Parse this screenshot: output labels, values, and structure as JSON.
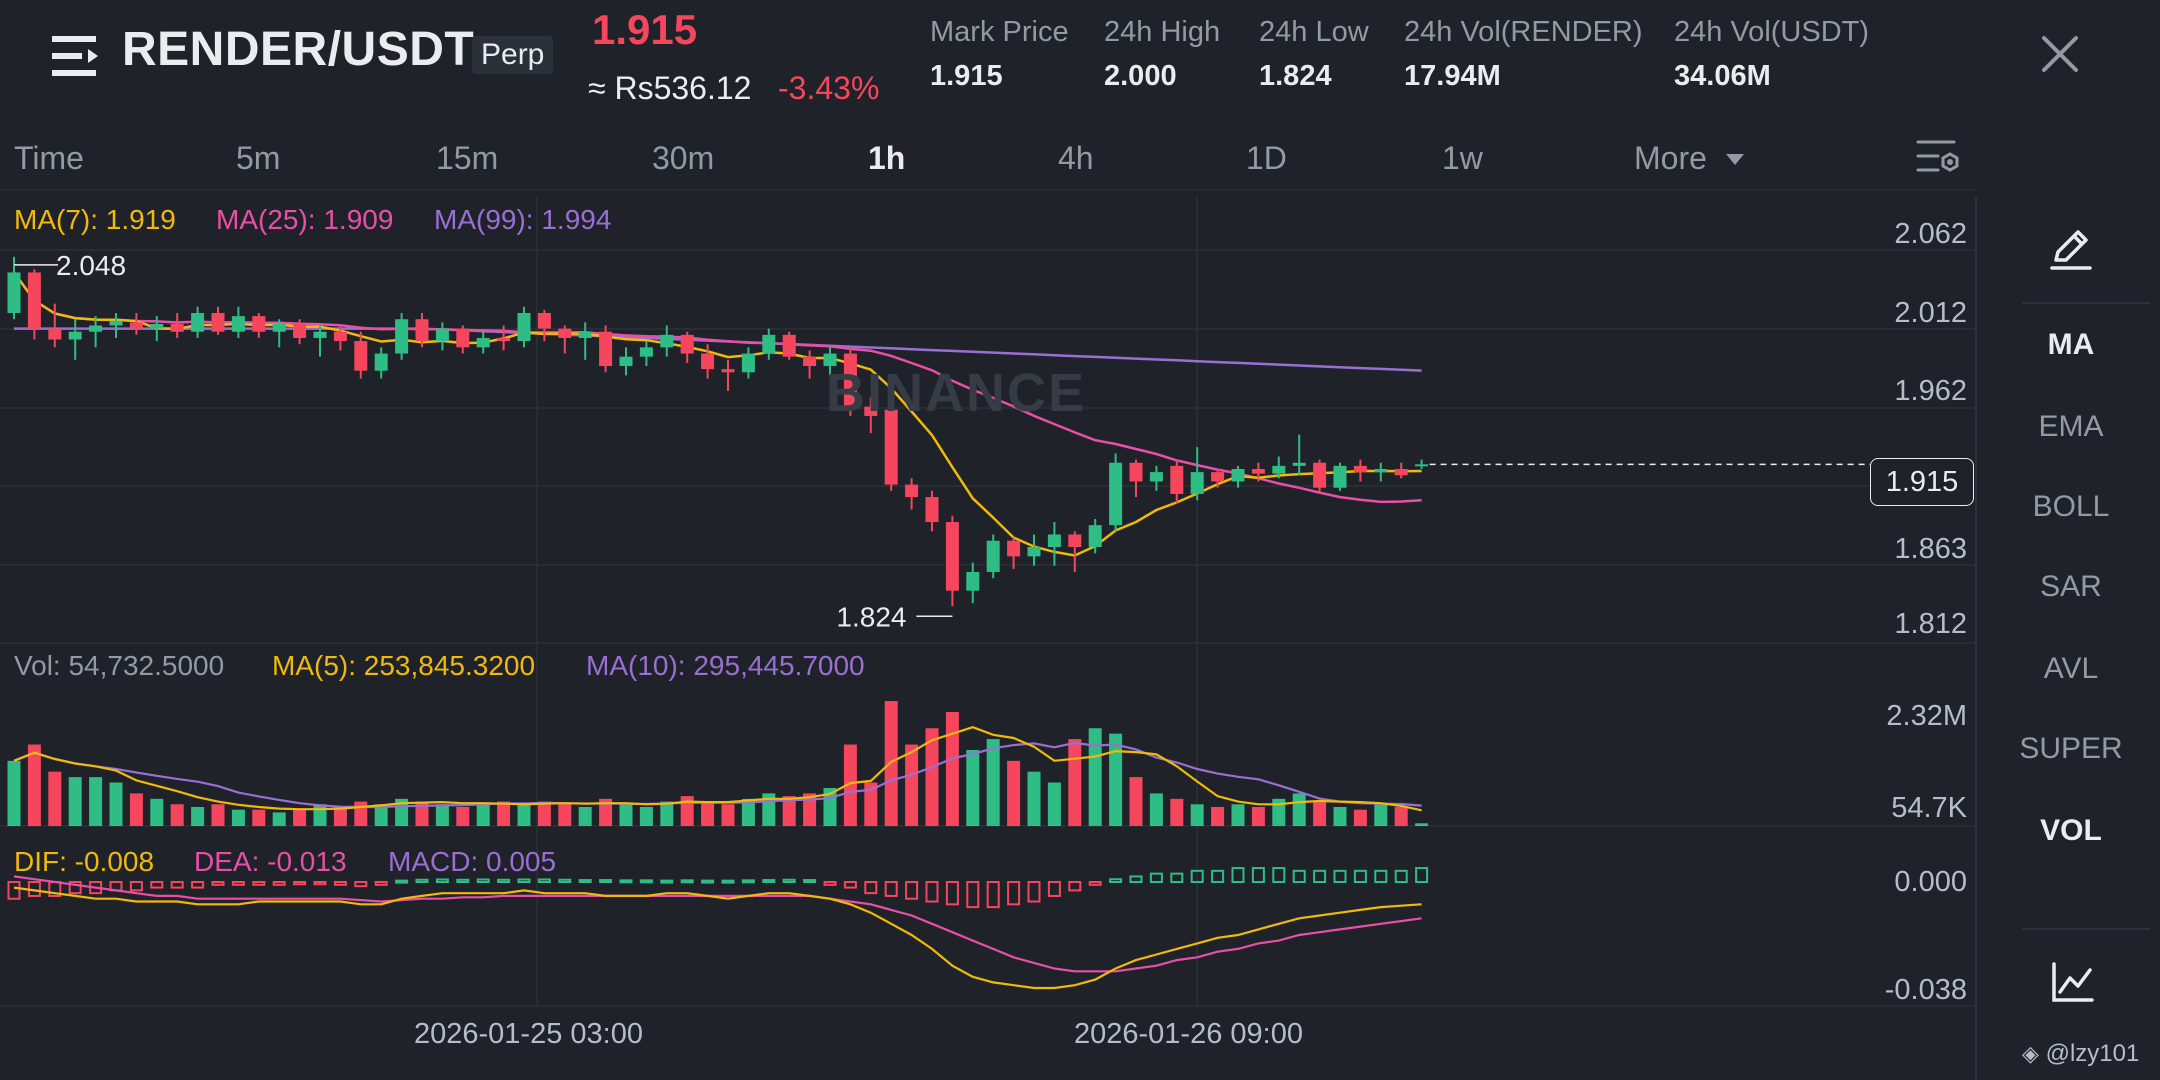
{
  "header": {
    "pair": "RENDER/USDT",
    "contract_type": "Perp",
    "last_price": "1.915",
    "approx_local": "≈ Rs536.12",
    "change_pct": "-3.43%",
    "stats": [
      {
        "label": "Mark Price",
        "value": "1.915"
      },
      {
        "label": "24h High",
        "value": "2.000"
      },
      {
        "label": "24h Low",
        "value": "1.824"
      },
      {
        "label": "24h Vol(RENDER)",
        "value": "17.94M"
      },
      {
        "label": "24h Vol(USDT)",
        "value": "34.06M"
      }
    ]
  },
  "intervals": {
    "items": [
      "Time",
      "5m",
      "15m",
      "30m",
      "1h",
      "4h",
      "1D",
      "1w",
      "More"
    ],
    "active": "1h"
  },
  "indicators": {
    "main": {
      "ma7": "MA(7): 1.919",
      "ma25": "MA(25): 1.909",
      "ma99": "MA(99): 1.994"
    },
    "volume": {
      "vol": "Vol: 54,732.5000",
      "ma5": "MA(5): 253,845.3200",
      "ma10": "MA(10): 295,445.7000"
    },
    "macd": {
      "dif": "DIF: -0.008",
      "dea": "DEA: -0.013",
      "macd": "MACD: 0.005"
    }
  },
  "side_menu": {
    "items": [
      "MA",
      "EMA",
      "BOLL",
      "SAR",
      "AVL",
      "SUPER",
      "VOL"
    ],
    "active": [
      "MA",
      "VOL"
    ]
  },
  "watermark": "BINANCE",
  "credit": "@lzy101",
  "colors": {
    "up": "#2ebd85",
    "down": "#f6465d",
    "ma7": "#f0b90b",
    "ma25": "#e84fa8",
    "ma99": "#9a6fd3",
    "background": "#1f2329"
  },
  "chart_data": {
    "type": "candlestick",
    "interval": "1h",
    "price_axis": {
      "ticks": [
        "2.062",
        "2.012",
        "1.962",
        "1.863",
        "1.812"
      ],
      "range": [
        1.8,
        2.075
      ]
    },
    "current_price_label": "1.915",
    "high_label": "2.048",
    "low_label": "1.824",
    "x_ticks": [
      "2026-01-25 03:00",
      "2026-01-26 09:00"
    ],
    "candles": [
      {
        "o": 2.012,
        "h": 2.048,
        "l": 2.008,
        "c": 2.038
      },
      {
        "o": 2.038,
        "h": 2.04,
        "l": 1.995,
        "c": 2.002
      },
      {
        "o": 2.002,
        "h": 2.018,
        "l": 1.99,
        "c": 1.995
      },
      {
        "o": 1.995,
        "h": 2.008,
        "l": 1.982,
        "c": 2.0
      },
      {
        "o": 2.0,
        "h": 2.01,
        "l": 1.99,
        "c": 2.004
      },
      {
        "o": 2.004,
        "h": 2.012,
        "l": 1.996,
        "c": 2.007
      },
      {
        "o": 2.006,
        "h": 2.012,
        "l": 1.998,
        "c": 2.002
      },
      {
        "o": 2.002,
        "h": 2.01,
        "l": 1.994,
        "c": 2.005
      },
      {
        "o": 2.005,
        "h": 2.012,
        "l": 1.996,
        "c": 2.0
      },
      {
        "o": 2.0,
        "h": 2.016,
        "l": 1.996,
        "c": 2.012
      },
      {
        "o": 2.012,
        "h": 2.016,
        "l": 1.998,
        "c": 2.0
      },
      {
        "o": 2.0,
        "h": 2.016,
        "l": 1.996,
        "c": 2.01
      },
      {
        "o": 2.01,
        "h": 2.012,
        "l": 1.996,
        "c": 2.0
      },
      {
        "o": 2.0,
        "h": 2.008,
        "l": 1.99,
        "c": 2.005
      },
      {
        "o": 2.005,
        "h": 2.008,
        "l": 1.992,
        "c": 1.996
      },
      {
        "o": 1.996,
        "h": 2.004,
        "l": 1.984,
        "c": 2.0
      },
      {
        "o": 2.0,
        "h": 2.004,
        "l": 1.988,
        "c": 1.994
      },
      {
        "o": 1.994,
        "h": 2.0,
        "l": 1.97,
        "c": 1.975
      },
      {
        "o": 1.975,
        "h": 1.99,
        "l": 1.97,
        "c": 1.986
      },
      {
        "o": 1.986,
        "h": 2.012,
        "l": 1.982,
        "c": 2.008
      },
      {
        "o": 2.008,
        "h": 2.012,
        "l": 1.99,
        "c": 1.994
      },
      {
        "o": 1.994,
        "h": 2.006,
        "l": 1.988,
        "c": 2.002
      },
      {
        "o": 2.002,
        "h": 2.004,
        "l": 1.986,
        "c": 1.99
      },
      {
        "o": 1.99,
        "h": 2.0,
        "l": 1.986,
        "c": 1.996
      },
      {
        "o": 1.996,
        "h": 2.004,
        "l": 1.988,
        "c": 1.994
      },
      {
        "o": 1.994,
        "h": 2.016,
        "l": 1.99,
        "c": 2.012
      },
      {
        "o": 2.012,
        "h": 2.014,
        "l": 1.994,
        "c": 2.002
      },
      {
        "o": 2.002,
        "h": 2.004,
        "l": 1.986,
        "c": 1.996
      },
      {
        "o": 1.996,
        "h": 2.006,
        "l": 1.982,
        "c": 2.0
      },
      {
        "o": 2.0,
        "h": 2.004,
        "l": 1.974,
        "c": 1.978
      },
      {
        "o": 1.978,
        "h": 1.99,
        "l": 1.972,
        "c": 1.984
      },
      {
        "o": 1.984,
        "h": 1.994,
        "l": 1.978,
        "c": 1.99
      },
      {
        "o": 1.99,
        "h": 2.004,
        "l": 1.984,
        "c": 1.998
      },
      {
        "o": 1.998,
        "h": 2.0,
        "l": 1.98,
        "c": 1.986
      },
      {
        "o": 1.986,
        "h": 1.992,
        "l": 1.97,
        "c": 1.976
      },
      {
        "o": 1.976,
        "h": 1.982,
        "l": 1.962,
        "c": 1.974
      },
      {
        "o": 1.974,
        "h": 1.99,
        "l": 1.97,
        "c": 1.986
      },
      {
        "o": 1.986,
        "h": 2.002,
        "l": 1.982,
        "c": 1.998
      },
      {
        "o": 1.998,
        "h": 2.0,
        "l": 1.982,
        "c": 1.984
      },
      {
        "o": 1.984,
        "h": 1.988,
        "l": 1.97,
        "c": 1.978
      },
      {
        "o": 1.978,
        "h": 1.99,
        "l": 1.972,
        "c": 1.986
      },
      {
        "o": 1.986,
        "h": 1.99,
        "l": 1.946,
        "c": 1.952
      },
      {
        "o": 1.952,
        "h": 1.958,
        "l": 1.935,
        "c": 1.946
      },
      {
        "o": 1.95,
        "h": 1.952,
        "l": 1.898,
        "c": 1.902
      },
      {
        "o": 1.902,
        "h": 1.906,
        "l": 1.886,
        "c": 1.894
      },
      {
        "o": 1.894,
        "h": 1.898,
        "l": 1.872,
        "c": 1.878
      },
      {
        "o": 1.878,
        "h": 1.882,
        "l": 1.824,
        "c": 1.834
      },
      {
        "o": 1.834,
        "h": 1.852,
        "l": 1.826,
        "c": 1.846
      },
      {
        "o": 1.846,
        "h": 1.87,
        "l": 1.842,
        "c": 1.866
      },
      {
        "o": 1.866,
        "h": 1.868,
        "l": 1.848,
        "c": 1.856
      },
      {
        "o": 1.856,
        "h": 1.87,
        "l": 1.85,
        "c": 1.862
      },
      {
        "o": 1.862,
        "h": 1.878,
        "l": 1.85,
        "c": 1.87
      },
      {
        "o": 1.87,
        "h": 1.872,
        "l": 1.846,
        "c": 1.862
      },
      {
        "o": 1.862,
        "h": 1.88,
        "l": 1.858,
        "c": 1.876
      },
      {
        "o": 1.876,
        "h": 1.922,
        "l": 1.872,
        "c": 1.916
      },
      {
        "o": 1.916,
        "h": 1.918,
        "l": 1.894,
        "c": 1.904
      },
      {
        "o": 1.904,
        "h": 1.914,
        "l": 1.898,
        "c": 1.91
      },
      {
        "o": 1.914,
        "h": 1.918,
        "l": 1.89,
        "c": 1.896
      },
      {
        "o": 1.896,
        "h": 1.926,
        "l": 1.892,
        "c": 1.91
      },
      {
        "o": 1.91,
        "h": 1.912,
        "l": 1.9,
        "c": 1.904
      },
      {
        "o": 1.904,
        "h": 1.914,
        "l": 1.9,
        "c": 1.912
      },
      {
        "o": 1.912,
        "h": 1.916,
        "l": 1.904,
        "c": 1.909
      },
      {
        "o": 1.909,
        "h": 1.92,
        "l": 1.906,
        "c": 1.914
      },
      {
        "o": 1.914,
        "h": 1.934,
        "l": 1.908,
        "c": 1.916
      },
      {
        "o": 1.916,
        "h": 1.918,
        "l": 1.896,
        "c": 1.9
      },
      {
        "o": 1.9,
        "h": 1.916,
        "l": 1.898,
        "c": 1.914
      },
      {
        "o": 1.914,
        "h": 1.918,
        "l": 1.904,
        "c": 1.91
      },
      {
        "o": 1.91,
        "h": 1.916,
        "l": 1.904,
        "c": 1.912
      },
      {
        "o": 1.912,
        "h": 1.916,
        "l": 1.906,
        "c": 1.908
      },
      {
        "o": 1.915,
        "h": 1.918,
        "l": 1.912,
        "c": 1.915
      }
    ],
    "volume_axis": {
      "ticks": [
        "2.32M",
        "54.7K"
      ],
      "max": 2.32
    },
    "volumes_m": [
      1.2,
      1.5,
      1.0,
      0.9,
      0.9,
      0.8,
      0.6,
      0.5,
      0.4,
      0.35,
      0.4,
      0.3,
      0.3,
      0.25,
      0.3,
      0.4,
      0.35,
      0.45,
      0.4,
      0.5,
      0.45,
      0.4,
      0.35,
      0.4,
      0.45,
      0.4,
      0.45,
      0.4,
      0.35,
      0.5,
      0.4,
      0.35,
      0.45,
      0.55,
      0.45,
      0.4,
      0.5,
      0.6,
      0.55,
      0.6,
      0.7,
      1.5,
      0.8,
      2.3,
      1.5,
      1.8,
      2.1,
      1.4,
      1.6,
      1.2,
      1.0,
      0.8,
      1.6,
      1.8,
      1.7,
      0.9,
      0.6,
      0.5,
      0.4,
      0.35,
      0.4,
      0.35,
      0.5,
      0.6,
      0.45,
      0.35,
      0.3,
      0.4,
      0.35,
      0.05
    ],
    "macd_axis": {
      "ticks": [
        "0.000",
        "-0.038"
      ],
      "range": [
        -0.042,
        0.004
      ]
    },
    "macd_hist": [
      -0.006,
      -0.005,
      -0.005,
      -0.004,
      -0.004,
      -0.003,
      -0.003,
      -0.002,
      -0.002,
      -0.002,
      -0.001,
      -0.001,
      -0.001,
      -0.001,
      -0.0008,
      -0.0008,
      -0.001,
      -0.0015,
      -0.001,
      0.0005,
      0.0008,
      0.0009,
      0.0008,
      0.0009,
      0.0008,
      0.0009,
      0.0009,
      0.0008,
      0.0007,
      0.0007,
      0.0006,
      0.0006,
      0.0005,
      0.0006,
      0.0005,
      0.0005,
      0.0006,
      0.0007,
      0.0008,
      0.0007,
      -0.001,
      -0.002,
      -0.004,
      -0.005,
      -0.006,
      -0.007,
      -0.008,
      -0.009,
      -0.009,
      -0.008,
      -0.007,
      -0.005,
      -0.003,
      -0.001,
      0.001,
      0.002,
      0.003,
      0.003,
      0.004,
      0.004,
      0.005,
      0.005,
      0.005,
      0.004,
      0.004,
      0.004,
      0.004,
      0.004,
      0.004,
      0.005
    ],
    "dif": [
      -0.002,
      -0.003,
      -0.004,
      -0.005,
      -0.006,
      -0.006,
      -0.007,
      -0.007,
      -0.007,
      -0.008,
      -0.008,
      -0.008,
      -0.007,
      -0.007,
      -0.007,
      -0.007,
      -0.007,
      -0.008,
      -0.008,
      -0.006,
      -0.005,
      -0.004,
      -0.004,
      -0.004,
      -0.004,
      -0.003,
      -0.004,
      -0.004,
      -0.004,
      -0.005,
      -0.005,
      -0.005,
      -0.004,
      -0.004,
      -0.005,
      -0.006,
      -0.005,
      -0.004,
      -0.004,
      -0.005,
      -0.006,
      -0.008,
      -0.011,
      -0.015,
      -0.019,
      -0.024,
      -0.03,
      -0.034,
      -0.036,
      -0.037,
      -0.038,
      -0.038,
      -0.037,
      -0.035,
      -0.031,
      -0.028,
      -0.026,
      -0.024,
      -0.022,
      -0.02,
      -0.019,
      -0.017,
      -0.015,
      -0.013,
      -0.012,
      -0.011,
      -0.01,
      -0.009,
      -0.0085,
      -0.008
    ],
    "dea": [
      0.002,
      0.001,
      0.0,
      -0.001,
      -0.002,
      -0.003,
      -0.004,
      -0.005,
      -0.005,
      -0.006,
      -0.006,
      -0.006,
      -0.006,
      -0.006,
      -0.006,
      -0.006,
      -0.006,
      -0.0065,
      -0.007,
      -0.0065,
      -0.006,
      -0.006,
      -0.0055,
      -0.0055,
      -0.005,
      -0.005,
      -0.005,
      -0.005,
      -0.005,
      -0.005,
      -0.005,
      -0.005,
      -0.005,
      -0.005,
      -0.005,
      -0.005,
      -0.005,
      -0.005,
      -0.005,
      -0.005,
      -0.006,
      -0.007,
      -0.008,
      -0.01,
      -0.012,
      -0.015,
      -0.018,
      -0.021,
      -0.024,
      -0.027,
      -0.029,
      -0.031,
      -0.032,
      -0.032,
      -0.032,
      -0.031,
      -0.03,
      -0.028,
      -0.027,
      -0.025,
      -0.024,
      -0.022,
      -0.021,
      -0.019,
      -0.018,
      -0.017,
      -0.016,
      -0.015,
      -0.014,
      -0.013
    ]
  }
}
